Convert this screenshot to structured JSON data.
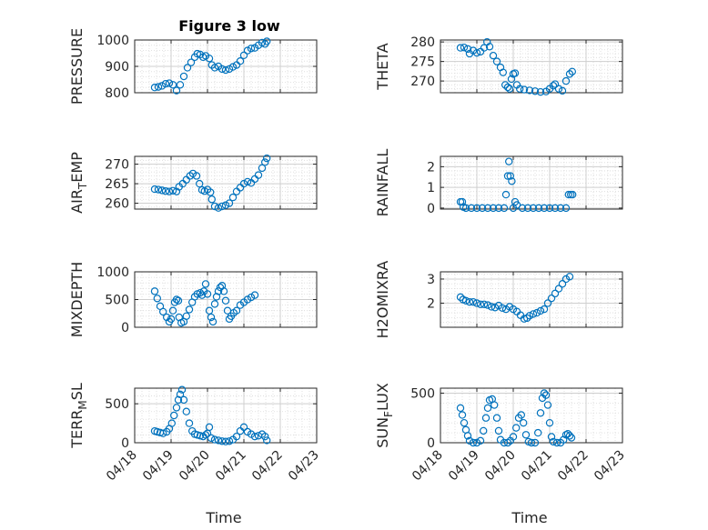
{
  "figure": {
    "title": "Figure 3 low"
  },
  "colors": {
    "marker": "#0072BD",
    "axis": "#262626",
    "grid": "#d9d9d9",
    "background": "#ffffff"
  },
  "shared_x": {
    "label": "Time",
    "ticks": [
      18,
      19,
      20,
      21,
      22,
      23
    ],
    "tick_labels": [
      "04/18",
      "04/19",
      "04/20",
      "04/21",
      "04/22",
      "04/23"
    ]
  },
  "chart_data": [
    {
      "type": "scatter",
      "ylabel": "PRESSURE",
      "ylabel_main": "PRESSURE",
      "ylabel_sub": "",
      "xlim": [
        18,
        23
      ],
      "ylim": [
        800,
        1000
      ],
      "yticks": [
        800,
        900,
        1000
      ],
      "ytick_labels": [
        "800",
        "900",
        "1000"
      ],
      "minor_y": 20,
      "points": [
        [
          18.55,
          820
        ],
        [
          18.65,
          822
        ],
        [
          18.75,
          826
        ],
        [
          18.85,
          834
        ],
        [
          18.95,
          836
        ],
        [
          19.05,
          830
        ],
        [
          19.15,
          808
        ],
        [
          19.25,
          830
        ],
        [
          19.35,
          862
        ],
        [
          19.45,
          895
        ],
        [
          19.55,
          915
        ],
        [
          19.65,
          935
        ],
        [
          19.72,
          948
        ],
        [
          19.8,
          945
        ],
        [
          19.88,
          935
        ],
        [
          19.95,
          940
        ],
        [
          20.05,
          930
        ],
        [
          20.12,
          905
        ],
        [
          20.2,
          895
        ],
        [
          20.3,
          900
        ],
        [
          20.4,
          890
        ],
        [
          20.5,
          886
        ],
        [
          20.6,
          890
        ],
        [
          20.7,
          898
        ],
        [
          20.8,
          905
        ],
        [
          20.9,
          920
        ],
        [
          21.0,
          942
        ],
        [
          21.1,
          960
        ],
        [
          21.2,
          968
        ],
        [
          21.3,
          970
        ],
        [
          21.4,
          980
        ],
        [
          21.5,
          990
        ],
        [
          21.58,
          985
        ],
        [
          21.63,
          995
        ]
      ]
    },
    {
      "type": "scatter",
      "ylabel": "THETA",
      "ylabel_main": "THETA",
      "ylabel_sub": "",
      "xlim": [
        18,
        23
      ],
      "ylim": [
        267,
        280.5
      ],
      "yticks": [
        270,
        275,
        280
      ],
      "ytick_labels": [
        "270",
        "275",
        "280"
      ],
      "minor_y": 1,
      "points": [
        [
          18.55,
          278.5
        ],
        [
          18.65,
          278.6
        ],
        [
          18.75,
          278.2
        ],
        [
          18.8,
          277.0
        ],
        [
          18.9,
          277.8
        ],
        [
          19.0,
          277.2
        ],
        [
          19.1,
          277.5
        ],
        [
          19.2,
          278.5
        ],
        [
          19.28,
          280.0
        ],
        [
          19.35,
          278.8
        ],
        [
          19.45,
          276.5
        ],
        [
          19.55,
          275.0
        ],
        [
          19.65,
          273.5
        ],
        [
          19.72,
          272.2
        ],
        [
          19.78,
          269.0
        ],
        [
          19.85,
          268.4
        ],
        [
          19.9,
          268.0
        ],
        [
          19.95,
          270.5
        ],
        [
          20.0,
          271.8
        ],
        [
          20.05,
          272.0
        ],
        [
          20.1,
          269.0
        ],
        [
          20.18,
          268.0
        ],
        [
          20.3,
          267.8
        ],
        [
          20.45,
          267.6
        ],
        [
          20.6,
          267.4
        ],
        [
          20.75,
          267.2
        ],
        [
          20.9,
          267.3
        ],
        [
          21.0,
          268.0
        ],
        [
          21.1,
          268.8
        ],
        [
          21.15,
          269.2
        ],
        [
          21.25,
          268.0
        ],
        [
          21.35,
          267.5
        ],
        [
          21.45,
          270.0
        ],
        [
          21.55,
          271.8
        ],
        [
          21.62,
          272.4
        ]
      ]
    },
    {
      "type": "scatter",
      "ylabel": "AIR_TEMP",
      "ylabel_main": "AIR",
      "ylabel_sub": "T",
      "ylabel_tail": "EMP",
      "xlim": [
        18,
        23
      ],
      "ylim": [
        258.5,
        272
      ],
      "yticks": [
        260,
        265,
        270
      ],
      "ytick_labels": [
        "260",
        "265",
        "270"
      ],
      "minor_y": 1,
      "points": [
        [
          18.55,
          263.6
        ],
        [
          18.65,
          263.5
        ],
        [
          18.75,
          263.3
        ],
        [
          18.85,
          263.1
        ],
        [
          18.95,
          263.0
        ],
        [
          19.05,
          263.2
        ],
        [
          19.15,
          263.0
        ],
        [
          19.22,
          264.2
        ],
        [
          19.32,
          265.0
        ],
        [
          19.42,
          266.0
        ],
        [
          19.52,
          267.0
        ],
        [
          19.6,
          267.6
        ],
        [
          19.7,
          267.0
        ],
        [
          19.78,
          265.0
        ],
        [
          19.85,
          263.4
        ],
        [
          19.92,
          263.1
        ],
        [
          20.0,
          263.5
        ],
        [
          20.08,
          262.8
        ],
        [
          20.12,
          261.0
        ],
        [
          20.2,
          259.2
        ],
        [
          20.3,
          258.8
        ],
        [
          20.4,
          259.2
        ],
        [
          20.5,
          259.5
        ],
        [
          20.6,
          260.0
        ],
        [
          20.7,
          261.5
        ],
        [
          20.8,
          263.0
        ],
        [
          20.9,
          264.0
        ],
        [
          21.0,
          265.0
        ],
        [
          21.1,
          265.5
        ],
        [
          21.2,
          265.2
        ],
        [
          21.3,
          266.2
        ],
        [
          21.4,
          267.2
        ],
        [
          21.5,
          269.0
        ],
        [
          21.58,
          270.5
        ],
        [
          21.63,
          271.5
        ]
      ]
    },
    {
      "type": "scatter",
      "ylabel": "RAINFALL",
      "ylabel_main": "RAINFALL",
      "ylabel_sub": "",
      "xlim": [
        18,
        23
      ],
      "ylim": [
        -0.05,
        2.5
      ],
      "yticks": [
        0,
        1,
        2
      ],
      "ytick_labels": [
        "0",
        "1",
        "2"
      ],
      "minor_y": 0.2,
      "points": [
        [
          18.55,
          0.3
        ],
        [
          18.6,
          0.3
        ],
        [
          18.63,
          0.05
        ],
        [
          18.7,
          0.0
        ],
        [
          18.85,
          0.0
        ],
        [
          19.0,
          0.0
        ],
        [
          19.15,
          0.0
        ],
        [
          19.3,
          0.0
        ],
        [
          19.45,
          0.0
        ],
        [
          19.6,
          0.0
        ],
        [
          19.75,
          0.0
        ],
        [
          19.8,
          0.65
        ],
        [
          19.85,
          1.55
        ],
        [
          19.88,
          2.25
        ],
        [
          19.92,
          1.55
        ],
        [
          19.96,
          1.3
        ],
        [
          20.0,
          0.0
        ],
        [
          20.05,
          0.3
        ],
        [
          20.1,
          0.15
        ],
        [
          20.25,
          0.0
        ],
        [
          20.4,
          0.0
        ],
        [
          20.55,
          0.0
        ],
        [
          20.7,
          0.0
        ],
        [
          20.85,
          0.0
        ],
        [
          21.0,
          0.0
        ],
        [
          21.15,
          0.0
        ],
        [
          21.3,
          0.0
        ],
        [
          21.45,
          0.0
        ],
        [
          21.52,
          0.65
        ],
        [
          21.58,
          0.65
        ],
        [
          21.63,
          0.65
        ]
      ]
    },
    {
      "type": "scatter",
      "ylabel": "MIXDEPTH",
      "ylabel_main": "MIXDEPTH",
      "ylabel_sub": "",
      "xlim": [
        18,
        23
      ],
      "ylim": [
        0,
        1000
      ],
      "yticks": [
        0,
        500,
        1000
      ],
      "ytick_labels": [
        "0",
        "500",
        "1000"
      ],
      "minor_y": 100,
      "points": [
        [
          18.55,
          650
        ],
        [
          18.62,
          520
        ],
        [
          18.7,
          380
        ],
        [
          18.78,
          280
        ],
        [
          18.88,
          180
        ],
        [
          18.95,
          100
        ],
        [
          19.0,
          150
        ],
        [
          19.05,
          300
        ],
        [
          19.1,
          450
        ],
        [
          19.15,
          500
        ],
        [
          19.2,
          480
        ],
        [
          19.22,
          180
        ],
        [
          19.28,
          80
        ],
        [
          19.35,
          100
        ],
        [
          19.42,
          200
        ],
        [
          19.5,
          320
        ],
        [
          19.58,
          450
        ],
        [
          19.65,
          550
        ],
        [
          19.72,
          600
        ],
        [
          19.8,
          620
        ],
        [
          19.85,
          580
        ],
        [
          19.9,
          650
        ],
        [
          19.95,
          780
        ],
        [
          20.0,
          600
        ],
        [
          20.05,
          300
        ],
        [
          20.1,
          180
        ],
        [
          20.15,
          100
        ],
        [
          20.2,
          420
        ],
        [
          20.25,
          550
        ],
        [
          20.3,
          650
        ],
        [
          20.35,
          720
        ],
        [
          20.4,
          750
        ],
        [
          20.45,
          650
        ],
        [
          20.5,
          480
        ],
        [
          20.55,
          300
        ],
        [
          20.6,
          150
        ],
        [
          20.65,
          200
        ],
        [
          20.72,
          260
        ],
        [
          20.8,
          300
        ],
        [
          20.9,
          400
        ],
        [
          21.0,
          450
        ],
        [
          21.1,
          500
        ],
        [
          21.2,
          540
        ],
        [
          21.3,
          580
        ]
      ]
    },
    {
      "type": "scatter",
      "ylabel": "H2OMIXRA",
      "ylabel_main": "H2OMIXRA",
      "ylabel_sub": "",
      "xlim": [
        18,
        23
      ],
      "ylim": [
        1.0,
        3.3
      ],
      "yticks": [
        2,
        3
      ],
      "ytick_labels": [
        "2",
        "3"
      ],
      "minor_y": 0.2,
      "points": [
        [
          18.55,
          2.25
        ],
        [
          18.62,
          2.15
        ],
        [
          18.7,
          2.1
        ],
        [
          18.8,
          2.05
        ],
        [
          18.9,
          2.05
        ],
        [
          19.0,
          2.0
        ],
        [
          19.1,
          1.95
        ],
        [
          19.2,
          1.95
        ],
        [
          19.3,
          1.92
        ],
        [
          19.4,
          1.85
        ],
        [
          19.5,
          1.82
        ],
        [
          19.6,
          1.9
        ],
        [
          19.7,
          1.8
        ],
        [
          19.8,
          1.75
        ],
        [
          19.9,
          1.85
        ],
        [
          20.0,
          1.75
        ],
        [
          20.1,
          1.65
        ],
        [
          20.2,
          1.5
        ],
        [
          20.3,
          1.35
        ],
        [
          20.38,
          1.38
        ],
        [
          20.45,
          1.48
        ],
        [
          20.55,
          1.55
        ],
        [
          20.65,
          1.6
        ],
        [
          20.75,
          1.68
        ],
        [
          20.85,
          1.75
        ],
        [
          20.95,
          2.0
        ],
        [
          21.05,
          2.2
        ],
        [
          21.15,
          2.4
        ],
        [
          21.25,
          2.6
        ],
        [
          21.35,
          2.8
        ],
        [
          21.45,
          3.0
        ],
        [
          21.55,
          3.1
        ]
      ]
    },
    {
      "type": "scatter",
      "ylabel": "TERR_MSL",
      "ylabel_main": "TERR",
      "ylabel_sub": "M",
      "ylabel_tail": "SL",
      "xlim": [
        18,
        23
      ],
      "ylim": [
        0,
        700
      ],
      "yticks": [
        0,
        500
      ],
      "ytick_labels": [
        "0",
        "500"
      ],
      "minor_y": 100,
      "points": [
        [
          18.55,
          150
        ],
        [
          18.62,
          140
        ],
        [
          18.7,
          130
        ],
        [
          18.78,
          120
        ],
        [
          18.88,
          140
        ],
        [
          18.95,
          180
        ],
        [
          19.02,
          250
        ],
        [
          19.08,
          350
        ],
        [
          19.15,
          450
        ],
        [
          19.2,
          550
        ],
        [
          19.25,
          620
        ],
        [
          19.3,
          680
        ],
        [
          19.35,
          550
        ],
        [
          19.42,
          400
        ],
        [
          19.5,
          250
        ],
        [
          19.58,
          150
        ],
        [
          19.65,
          110
        ],
        [
          19.72,
          100
        ],
        [
          19.8,
          90
        ],
        [
          19.88,
          80
        ],
        [
          19.95,
          100
        ],
        [
          20.0,
          120
        ],
        [
          20.05,
          200
        ],
        [
          20.1,
          60
        ],
        [
          20.2,
          40
        ],
        [
          20.3,
          30
        ],
        [
          20.4,
          20
        ],
        [
          20.5,
          15
        ],
        [
          20.6,
          20
        ],
        [
          20.7,
          40
        ],
        [
          20.8,
          80
        ],
        [
          20.9,
          150
        ],
        [
          21.0,
          200
        ],
        [
          21.1,
          140
        ],
        [
          21.2,
          110
        ],
        [
          21.3,
          80
        ],
        [
          21.4,
          90
        ],
        [
          21.5,
          110
        ],
        [
          21.58,
          80
        ],
        [
          21.63,
          30
        ]
      ]
    },
    {
      "type": "scatter",
      "ylabel": "SUN_FLUX",
      "ylabel_main": "SUN",
      "ylabel_sub": "F",
      "ylabel_tail": "LUX",
      "xlim": [
        18,
        23
      ],
      "ylim": [
        0,
        550
      ],
      "yticks": [
        0,
        500
      ],
      "ytick_labels": [
        "0",
        "500"
      ],
      "minor_y": 100,
      "points": [
        [
          18.55,
          350
        ],
        [
          18.6,
          280
        ],
        [
          18.65,
          200
        ],
        [
          18.7,
          130
        ],
        [
          18.75,
          70
        ],
        [
          18.8,
          20
        ],
        [
          18.9,
          0
        ],
        [
          19.0,
          0
        ],
        [
          19.1,
          20
        ],
        [
          19.18,
          120
        ],
        [
          19.25,
          250
        ],
        [
          19.3,
          350
        ],
        [
          19.35,
          430
        ],
        [
          19.42,
          440
        ],
        [
          19.48,
          380
        ],
        [
          19.55,
          250
        ],
        [
          19.6,
          120
        ],
        [
          19.65,
          30
        ],
        [
          19.75,
          0
        ],
        [
          19.85,
          0
        ],
        [
          19.92,
          20
        ],
        [
          20.0,
          60
        ],
        [
          20.08,
          150
        ],
        [
          20.15,
          250
        ],
        [
          20.22,
          280
        ],
        [
          20.28,
          200
        ],
        [
          20.35,
          80
        ],
        [
          20.42,
          10
        ],
        [
          20.5,
          0
        ],
        [
          20.6,
          0
        ],
        [
          20.68,
          100
        ],
        [
          20.75,
          300
        ],
        [
          20.8,
          450
        ],
        [
          20.85,
          500
        ],
        [
          20.9,
          480
        ],
        [
          20.95,
          380
        ],
        [
          21.0,
          200
        ],
        [
          21.05,
          60
        ],
        [
          21.1,
          10
        ],
        [
          21.2,
          0
        ],
        [
          21.3,
          0
        ],
        [
          21.38,
          30
        ],
        [
          21.45,
          80
        ],
        [
          21.5,
          90
        ],
        [
          21.55,
          70
        ],
        [
          21.6,
          50
        ]
      ]
    }
  ]
}
